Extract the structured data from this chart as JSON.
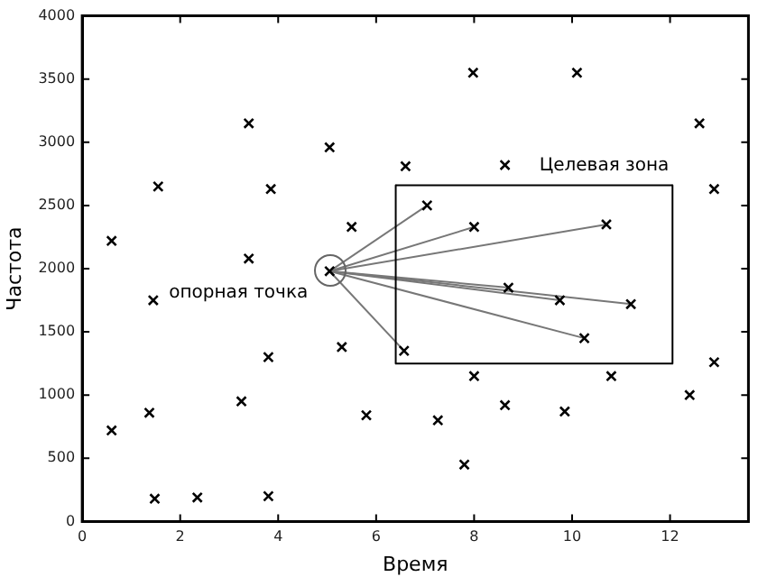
{
  "chart_data": {
    "type": "scatter",
    "xlabel": "Время",
    "ylabel": "Частота",
    "xlim": [
      0,
      13.6
    ],
    "xticks": [
      0,
      2,
      4,
      6,
      8,
      10,
      12
    ],
    "ylim": [
      0,
      4000
    ],
    "yticks": [
      0,
      500,
      1000,
      1500,
      2000,
      2500,
      3000,
      3500,
      4000
    ],
    "grid": false,
    "legend": false,
    "annotations": [
      {
        "text": "опорная точка",
        "x": 5.05,
        "y": 1980
      },
      "Целевая зона"
    ],
    "series": [
      {
        "type": "line",
        "color": "#000000",
        "x": [
          6.4,
          12.05
        ],
        "values": [
          2660,
          2660
        ]
      },
      {
        "type": "line",
        "color": "#000000",
        "x": [
          12.05,
          12.05
        ],
        "values": [
          2660,
          1250
        ]
      },
      {
        "type": "line",
        "color": "#000000",
        "x": [
          6.4,
          12.05
        ],
        "values": [
          1250,
          1250
        ]
      },
      {
        "type": "line",
        "color": "#000000",
        "x": [
          6.4,
          6.4
        ],
        "values": [
          2660,
          1250
        ]
      },
      {
        "type": "line",
        "color": "#777777",
        "x": [
          5.05,
          7.04
        ],
        "values": [
          1980,
          2500
        ]
      },
      {
        "type": "line",
        "color": "#777777",
        "x": [
          5.05,
          8.0
        ],
        "values": [
          1980,
          2330
        ]
      },
      {
        "type": "line",
        "color": "#777777",
        "x": [
          5.05,
          10.7
        ],
        "values": [
          1980,
          2350
        ]
      },
      {
        "type": "line",
        "color": "#777777",
        "x": [
          5.05,
          8.7
        ],
        "values": [
          1980,
          1850
        ]
      },
      {
        "type": "line",
        "color": "#777777",
        "x": [
          5.05,
          9.75
        ],
        "values": [
          1980,
          1750
        ]
      },
      {
        "type": "line",
        "color": "#777777",
        "x": [
          5.05,
          11.2
        ],
        "values": [
          1980,
          1720
        ]
      },
      {
        "type": "line",
        "color": "#777777",
        "x": [
          5.05,
          10.25
        ],
        "values": [
          1980,
          1450
        ]
      },
      {
        "type": "line",
        "color": "#777777",
        "x": [
          5.05,
          6.57
        ],
        "values": [
          1980,
          1350
        ]
      },
      {
        "type": "scatter",
        "color": "#000000",
        "marker": "cross",
        "x": [
          0.6,
          1.55,
          3.4,
          3.85,
          5.05,
          3.4,
          5.5,
          5.05,
          1.45,
          3.8,
          5.3,
          0.6,
          1.37,
          3.25,
          5.8,
          1.48,
          2.35,
          3.8,
          7.98,
          10.1,
          12.6,
          6.6,
          8.63,
          12.9,
          7.04,
          8.0,
          10.7,
          8.7,
          9.75,
          11.2,
          10.25,
          6.57,
          8.0,
          10.8,
          12.9,
          12.4,
          8.63,
          9.85,
          7.26,
          7.8
        ],
        "values": [
          2220,
          2650,
          3150,
          2630,
          2960,
          2080,
          2330,
          1980,
          1750,
          1300,
          1380,
          720,
          860,
          950,
          840,
          180,
          190,
          200,
          3550,
          3550,
          3150,
          2810,
          2820,
          2630,
          2500,
          2330,
          2350,
          1850,
          1750,
          1720,
          1450,
          1350,
          1150,
          1150,
          1260,
          1000,
          920,
          870,
          800,
          450
        ]
      }
    ]
  }
}
